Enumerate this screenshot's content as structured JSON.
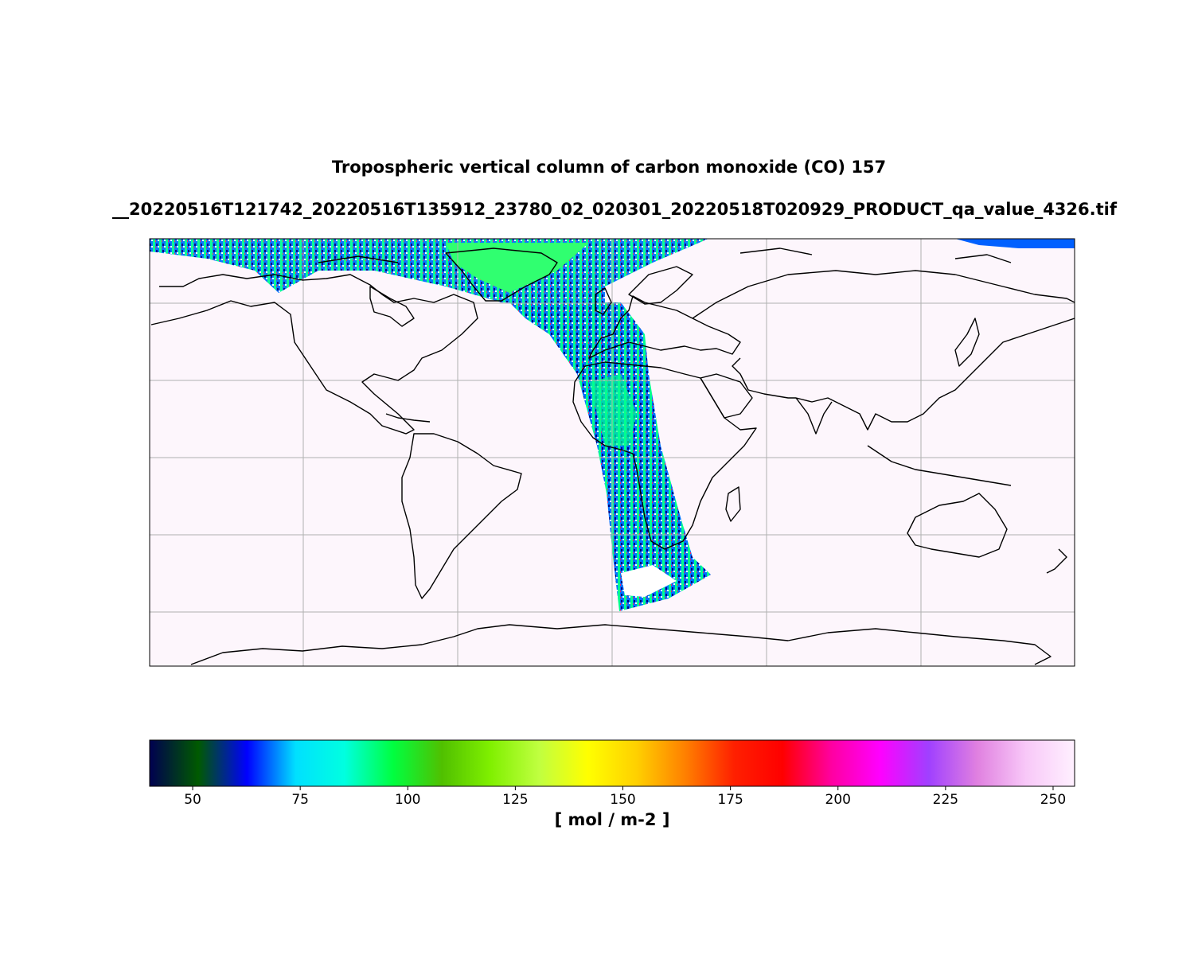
{
  "figure": {
    "title_line1": "Tropospheric vertical column of carbon monoxide (CO) 157",
    "title_line2": "__20220516T121742_20220516T135912_23780_02_020301_20220518T020929_PRODUCT_qa_value_4326.tif"
  },
  "colorbar": {
    "unit_label": "[ mol / m-2 ]",
    "range": [
      40,
      255
    ],
    "ticks": [
      "50",
      "75",
      "100",
      "125",
      "150",
      "175",
      "200",
      "225",
      "250"
    ],
    "colormap_stops": [
      "#000050",
      "#005a00",
      "#0000ff",
      "#00e0ff",
      "#00ffe0",
      "#00ff40",
      "#50c000",
      "#80f000",
      "#c0ff40",
      "#ffff00",
      "#ffd000",
      "#ff8000",
      "#ff2000",
      "#ff0000",
      "#ff00a0",
      "#ff00ff",
      "#a040ff",
      "#e080e0",
      "#f8c8f8",
      "#fff0ff"
    ]
  },
  "map": {
    "projection": "EPSG:4326 plate carree",
    "background_color": "#fdf6fc",
    "gridlines": true,
    "coastlines": true,
    "swath_colors": [
      "#0060ff",
      "#00ff80",
      "#00d8ff",
      "#000080",
      "#ffffff",
      "#ff3060",
      "#20ff40"
    ]
  }
}
